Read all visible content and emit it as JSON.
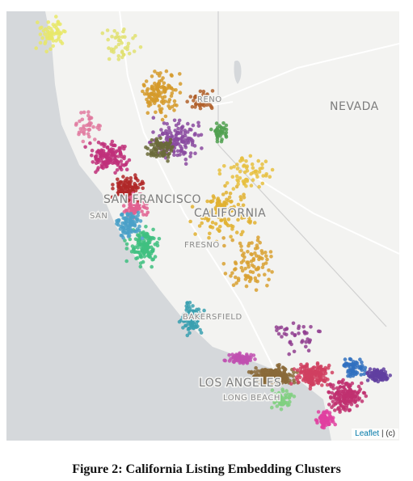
{
  "map": {
    "labels": {
      "reno": "RENO",
      "nevada": "NEVADA",
      "san_francisco": "SAN FRANCISCO",
      "san": "SAN",
      "california": "CALIFORNIA",
      "fresno": "FRESNO",
      "bakersfield": "BAKERSFIELD",
      "los_angeles": "LOS ANGELES",
      "long_beach": "LONG BEACH"
    },
    "attribution": {
      "link": "Leaflet",
      "text": "| (c)"
    }
  },
  "caption": "Figure 2: California Listing Embedding Clusters"
}
